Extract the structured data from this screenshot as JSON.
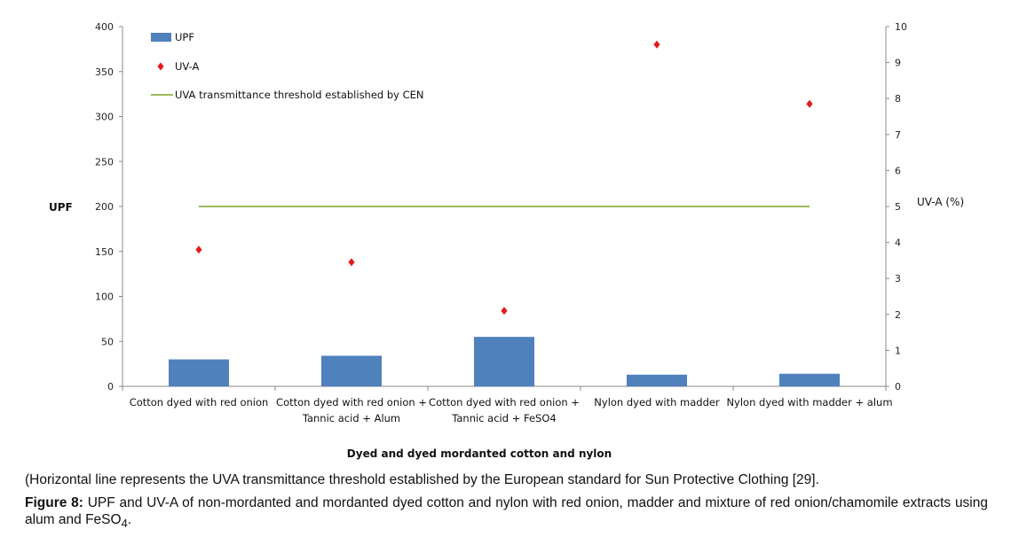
{
  "chart_data": {
    "type": "bar",
    "categories": [
      [
        "Cotton dyed with red onion"
      ],
      [
        "Cotton dyed with red onion +",
        "Tannic acid + Alum"
      ],
      [
        "Cotton dyed with red onion +",
        "Tannic acid + FeSO4"
      ],
      [
        "Nylon dyed with madder"
      ],
      [
        "Nylon dyed with madder + alum"
      ]
    ],
    "series": [
      {
        "name": "UPF",
        "kind": "bar",
        "axis": "left",
        "color": "#4f81bd",
        "values": [
          30,
          34,
          55,
          13,
          14
        ]
      },
      {
        "name": "UV-A",
        "kind": "scatter",
        "axis": "right",
        "color": "#e31a1c",
        "marker": "diamond",
        "values": [
          3.8,
          3.45,
          2.1,
          9.5,
          7.85
        ]
      },
      {
        "name": "UVA transmittance threshold established by CEN",
        "kind": "line",
        "axis": "right",
        "color": "#9bbb59",
        "values": [
          5,
          5,
          5,
          5,
          5
        ]
      }
    ],
    "ylabel": "UPF",
    "y2label": "UV-A (%)",
    "xlabel": "Dyed and dyed mordanted  cotton and nylon",
    "ylim": [
      0,
      400
    ],
    "yticks": [
      0,
      50,
      100,
      150,
      200,
      250,
      300,
      350,
      400
    ],
    "y2lim": [
      0,
      10
    ],
    "y2ticks": [
      0,
      1,
      2,
      3,
      4,
      5,
      6,
      7,
      8,
      9,
      10
    ],
    "legend_position": "top-left",
    "grid": false
  },
  "note": "(Horizontal line represents the UVA transmittance threshold established by the European standard for Sun Protective Clothing [29].",
  "caption": {
    "label": "Figure 8:",
    "text": " UPF and UV-A of non-mordanted and mordanted dyed cotton and nylon with red onion, madder and mixture of red onion/chamomile extracts using alum and FeSO",
    "subscript": "4",
    "end": "."
  }
}
